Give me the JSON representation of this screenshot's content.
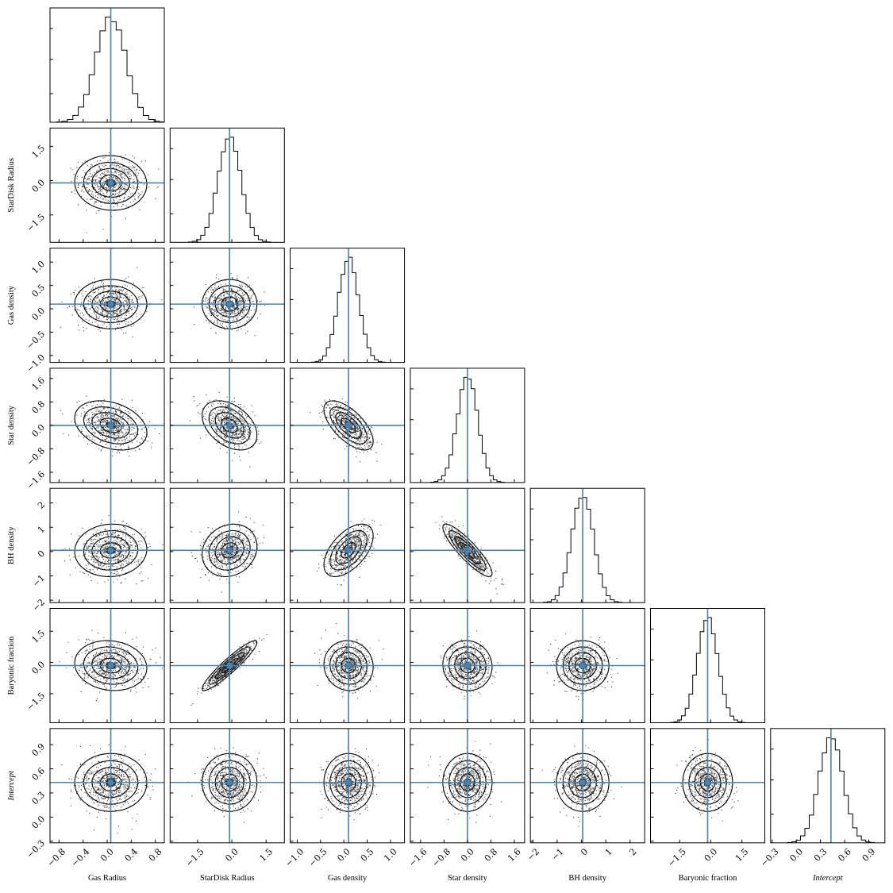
{
  "chart_data": {
    "type": "corner",
    "parameters": [
      {
        "label": "Gas Radius",
        "italic": false,
        "truth": 0.06,
        "range": [
          -0.95,
          0.95
        ],
        "ticks": [
          -0.8,
          -0.4,
          0.0,
          0.4,
          0.8
        ],
        "tick_labels": [
          "−0.8",
          "−0.4",
          "0.0",
          "0.4",
          "0.8"
        ],
        "sd": 0.25
      },
      {
        "label": "StarDisk Radius",
        "italic": false,
        "truth": -0.1,
        "range": [
          -2.7,
          2.3
        ],
        "ticks": [
          -1.5,
          0.0,
          1.5
        ],
        "tick_labels": [
          "−1.5",
          "0.0",
          "1.5"
        ],
        "sd": 0.5
      },
      {
        "label": "Gas density",
        "italic": false,
        "truth": 0.1,
        "range": [
          -1.15,
          1.3
        ],
        "ticks": [
          -1.0,
          -0.5,
          0.0,
          0.5,
          1.0
        ],
        "tick_labels": [
          "−1.0",
          "−0.5",
          "0.0",
          "0.5",
          "1.0"
        ],
        "sd": 0.22
      },
      {
        "label": "Star density",
        "italic": false,
        "truth": 0.0,
        "range": [
          -1.95,
          1.95
        ],
        "ticks": [
          -1.6,
          -0.8,
          0.0,
          0.8,
          1.6
        ],
        "tick_labels": [
          "−1.6",
          "−0.8",
          "0.0",
          "0.8",
          "1.6"
        ],
        "sd": 0.35
      },
      {
        "label": "BH density",
        "italic": false,
        "truth": 0.05,
        "range": [
          -2.1,
          2.6
        ],
        "ticks": [
          -2,
          -1,
          0,
          1,
          2
        ],
        "tick_labels": [
          "−2",
          "−1",
          "0",
          "1",
          "2"
        ],
        "sd": 0.45
      },
      {
        "label": "Baryonic fraction",
        "italic": false,
        "truth": -0.15,
        "range": [
          -2.9,
          2.6
        ],
        "ticks": [
          -1.5,
          0.0,
          1.5
        ],
        "tick_labels": [
          "−1.5",
          "0.0",
          "1.5"
        ],
        "sd": 0.5
      },
      {
        "label": "Intercept",
        "italic": true,
        "truth": 0.43,
        "range": [
          -0.32,
          1.1
        ],
        "ticks": [
          -0.3,
          0.0,
          0.3,
          0.6,
          0.9
        ],
        "tick_labels": [
          "−0.3",
          "0.0",
          "0.3",
          "0.6",
          "0.9"
        ],
        "sd": 0.15
      }
    ],
    "correlations": [
      {
        "i": 1,
        "j": 0,
        "rho": -0.05
      },
      {
        "i": 2,
        "j": 0,
        "rho": 0.0
      },
      {
        "i": 2,
        "j": 1,
        "rho": 0.0
      },
      {
        "i": 3,
        "j": 0,
        "rho": -0.3
      },
      {
        "i": 3,
        "j": 1,
        "rho": -0.4
      },
      {
        "i": 3,
        "j": 2,
        "rho": -0.65
      },
      {
        "i": 4,
        "j": 0,
        "rho": 0.05
      },
      {
        "i": 4,
        "j": 1,
        "rho": 0.15
      },
      {
        "i": 4,
        "j": 2,
        "rho": 0.55
      },
      {
        "i": 4,
        "j": 3,
        "rho": -0.88
      },
      {
        "i": 5,
        "j": 0,
        "rho": -0.1
      },
      {
        "i": 5,
        "j": 1,
        "rho": 0.93
      },
      {
        "i": 5,
        "j": 2,
        "rho": -0.05
      },
      {
        "i": 5,
        "j": 3,
        "rho": -0.05
      },
      {
        "i": 5,
        "j": 4,
        "rho": 0.0
      },
      {
        "i": 6,
        "j": 0,
        "rho": 0.0
      },
      {
        "i": 6,
        "j": 1,
        "rho": 0.0
      },
      {
        "i": 6,
        "j": 2,
        "rho": 0.0
      },
      {
        "i": 6,
        "j": 3,
        "rho": 0.0
      },
      {
        "i": 6,
        "j": 4,
        "rho": 0.0
      },
      {
        "i": 6,
        "j": 5,
        "rho": 0.0
      }
    ],
    "truth_color": "#4682b4",
    "grid": false
  }
}
